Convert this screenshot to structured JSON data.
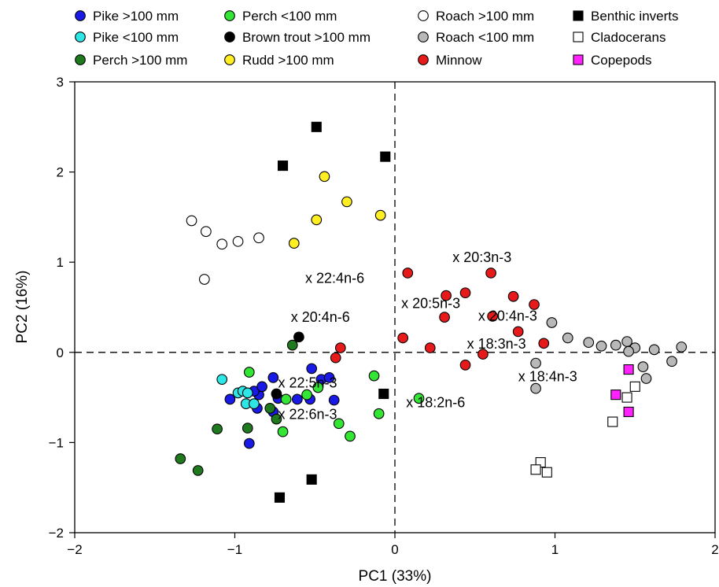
{
  "chart_data": {
    "type": "scatter",
    "title": "",
    "xlabel": "PC1 (33%)",
    "ylabel": "PC2 (16%)",
    "xlim": [
      -2,
      2
    ],
    "ylim": [
      -2,
      3
    ],
    "x_ticks": [
      -2,
      -1,
      0,
      1,
      2
    ],
    "y_ticks": [
      -2,
      -1,
      0,
      1,
      2,
      3
    ],
    "x_tick_labels": [
      "−2",
      "−1",
      "0",
      "1",
      "2"
    ],
    "y_tick_labels": [
      "−2",
      "−1",
      "0",
      "1",
      "2",
      "3"
    ],
    "reference_lines": {
      "x": 0,
      "y": 0,
      "style": "dashed"
    },
    "grid": false,
    "legend_position": "top",
    "series": [
      {
        "name": "Pike >100 mm",
        "marker": "circle",
        "fill": "#1a1ae6",
        "points": [
          [
            -0.91,
            -1.01
          ],
          [
            -0.85,
            -0.47
          ],
          [
            -0.88,
            -0.43
          ],
          [
            -0.83,
            -0.38
          ],
          [
            -0.76,
            -0.28
          ],
          [
            -0.73,
            -0.51
          ],
          [
            -0.61,
            -0.52
          ],
          [
            -0.53,
            -0.52
          ],
          [
            -0.52,
            -0.18
          ],
          [
            -0.46,
            -0.3
          ],
          [
            -0.41,
            -0.28
          ],
          [
            -0.38,
            -0.53
          ],
          [
            -1.03,
            -0.52
          ],
          [
            -0.86,
            -0.62
          ],
          [
            -0.76,
            -0.66
          ]
        ]
      },
      {
        "name": "Pike <100 mm",
        "marker": "circle",
        "fill": "#2ee6e6",
        "points": [
          [
            -1.08,
            -0.3
          ],
          [
            -0.98,
            -0.45
          ],
          [
            -0.95,
            -0.43
          ],
          [
            -0.93,
            -0.57
          ],
          [
            -0.92,
            -0.45
          ],
          [
            -0.88,
            -0.57
          ]
        ]
      },
      {
        "name": "Perch >100 mm",
        "marker": "circle",
        "fill": "#1f7a1f",
        "points": [
          [
            -1.34,
            -1.18
          ],
          [
            -1.23,
            -1.31
          ],
          [
            -1.11,
            -0.85
          ],
          [
            -0.92,
            -0.84
          ],
          [
            -0.78,
            -0.62
          ],
          [
            -0.74,
            -0.74
          ],
          [
            -0.64,
            0.08
          ]
        ]
      },
      {
        "name": "Perch <100 mm",
        "marker": "circle",
        "fill": "#33e633",
        "points": [
          [
            -0.91,
            -0.22
          ],
          [
            -0.7,
            -0.88
          ],
          [
            -0.68,
            -0.52
          ],
          [
            -0.55,
            -0.47
          ],
          [
            -0.48,
            -0.39
          ],
          [
            -0.35,
            -0.79
          ],
          [
            -0.28,
            -0.93
          ],
          [
            -0.13,
            -0.26
          ],
          [
            -0.1,
            -0.68
          ],
          [
            0.15,
            -0.51
          ]
        ]
      },
      {
        "name": "Brown trout >100 mm",
        "marker": "circle",
        "fill": "#000000",
        "points": [
          [
            -0.6,
            0.17
          ],
          [
            -0.74,
            -0.46
          ]
        ]
      },
      {
        "name": "Rudd >100 mm",
        "marker": "circle",
        "fill": "#ffee22",
        "points": [
          [
            -0.44,
            1.95
          ],
          [
            -0.49,
            1.47
          ],
          [
            -0.63,
            1.21
          ],
          [
            -0.3,
            1.67
          ],
          [
            -0.09,
            1.52
          ]
        ]
      },
      {
        "name": "Roach >100 mm",
        "marker": "circle",
        "fill": "#ffffff",
        "points": [
          [
            -1.27,
            1.46
          ],
          [
            -1.18,
            1.34
          ],
          [
            -1.08,
            1.2
          ],
          [
            -0.98,
            1.23
          ],
          [
            -0.85,
            1.27
          ],
          [
            -1.19,
            0.81
          ]
        ]
      },
      {
        "name": "Roach <100 mm",
        "marker": "circle",
        "fill": "#b8b8b8",
        "points": [
          [
            0.98,
            0.33
          ],
          [
            1.08,
            0.16
          ],
          [
            1.21,
            0.11
          ],
          [
            1.29,
            0.07
          ],
          [
            1.38,
            0.08
          ],
          [
            1.45,
            0.12
          ],
          [
            1.5,
            0.05
          ],
          [
            1.55,
            -0.16
          ],
          [
            1.57,
            -0.29
          ],
          [
            1.62,
            0.03
          ],
          [
            1.73,
            -0.1
          ],
          [
            1.79,
            0.06
          ],
          [
            1.46,
            0.01
          ],
          [
            0.88,
            -0.12
          ],
          [
            0.88,
            -0.4
          ]
        ]
      },
      {
        "name": "Minnow",
        "marker": "circle",
        "fill": "#e61a1a",
        "points": [
          [
            0.08,
            0.88
          ],
          [
            0.32,
            0.63
          ],
          [
            0.44,
            0.66
          ],
          [
            0.6,
            0.88
          ],
          [
            0.31,
            0.39
          ],
          [
            0.61,
            0.4
          ],
          [
            0.74,
            0.62
          ],
          [
            0.77,
            0.23
          ],
          [
            0.87,
            0.53
          ],
          [
            0.93,
            0.1
          ],
          [
            0.05,
            0.16
          ],
          [
            0.22,
            0.05
          ],
          [
            0.44,
            -0.14
          ],
          [
            0.55,
            -0.02
          ],
          [
            -0.34,
            0.05
          ],
          [
            -0.37,
            -0.06
          ]
        ]
      },
      {
        "name": "Benthic inverts",
        "marker": "square",
        "fill": "#000000",
        "points": [
          [
            -0.49,
            2.5
          ],
          [
            -0.06,
            2.17
          ],
          [
            -0.7,
            2.07
          ],
          [
            -0.07,
            -0.46
          ],
          [
            -0.52,
            -1.41
          ],
          [
            -0.72,
            -1.61
          ]
        ]
      },
      {
        "name": "Cladocerans",
        "marker": "square",
        "fill": "#ffffff",
        "points": [
          [
            1.5,
            -0.38
          ],
          [
            1.45,
            -0.5
          ],
          [
            1.36,
            -0.77
          ],
          [
            0.91,
            -1.22
          ],
          [
            0.88,
            -1.3
          ],
          [
            0.95,
            -1.33
          ]
        ]
      },
      {
        "name": "Copepods",
        "marker": "square",
        "fill": "#ff22ff",
        "points": [
          [
            1.46,
            -0.19
          ],
          [
            1.38,
            -0.47
          ],
          [
            1.46,
            -0.66
          ]
        ]
      }
    ],
    "annotations": [
      {
        "text": "x 20:3n-3",
        "x": 0.36,
        "y": 1.0
      },
      {
        "text": "x 22:4n-6",
        "x": -0.56,
        "y": 0.77
      },
      {
        "text": "x 20:5n-3",
        "x": 0.04,
        "y": 0.49
      },
      {
        "text": "x 20:4n-3",
        "x": 0.52,
        "y": 0.35
      },
      {
        "text": "x 20:4n-6",
        "x": -0.65,
        "y": 0.34
      },
      {
        "text": "x 18:3n-3",
        "x": 0.45,
        "y": 0.04
      },
      {
        "text": "x 18:4n-3",
        "x": 0.77,
        "y": -0.32
      },
      {
        "text": "x 22:5n-3",
        "x": -0.73,
        "y": -0.39
      },
      {
        "text": "x 18:2n-6",
        "x": 0.07,
        "y": -0.61
      },
      {
        "text": "x 22:6n-3",
        "x": -0.73,
        "y": -0.74
      }
    ]
  }
}
